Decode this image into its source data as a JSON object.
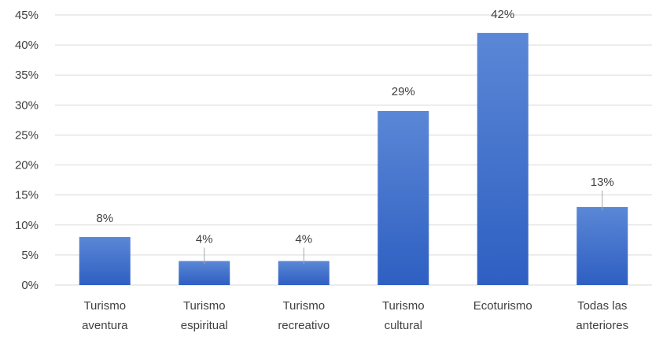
{
  "chart_data": {
    "type": "bar",
    "categories": [
      [
        "Turismo",
        "aventura"
      ],
      [
        "Turismo",
        "espiritual"
      ],
      [
        "Turismo",
        "recreativo"
      ],
      [
        "Turismo",
        "cultural"
      ],
      [
        "Ecoturismo"
      ],
      [
        "Todas las",
        "anteriores"
      ]
    ],
    "values": [
      8,
      4,
      4,
      29,
      42,
      13
    ],
    "data_labels": [
      "8%",
      "4%",
      "4%",
      "29%",
      "42%",
      "13%"
    ],
    "y_ticks": [
      "0%",
      "5%",
      "10%",
      "15%",
      "20%",
      "25%",
      "30%",
      "35%",
      "40%",
      "45%"
    ],
    "ylim": [
      0,
      45
    ],
    "grid": true,
    "title": "",
    "xlabel": "",
    "ylabel": "",
    "colors": {
      "bar_top": "#5b87d6",
      "bar_bottom": "#2e5fc2"
    }
  }
}
